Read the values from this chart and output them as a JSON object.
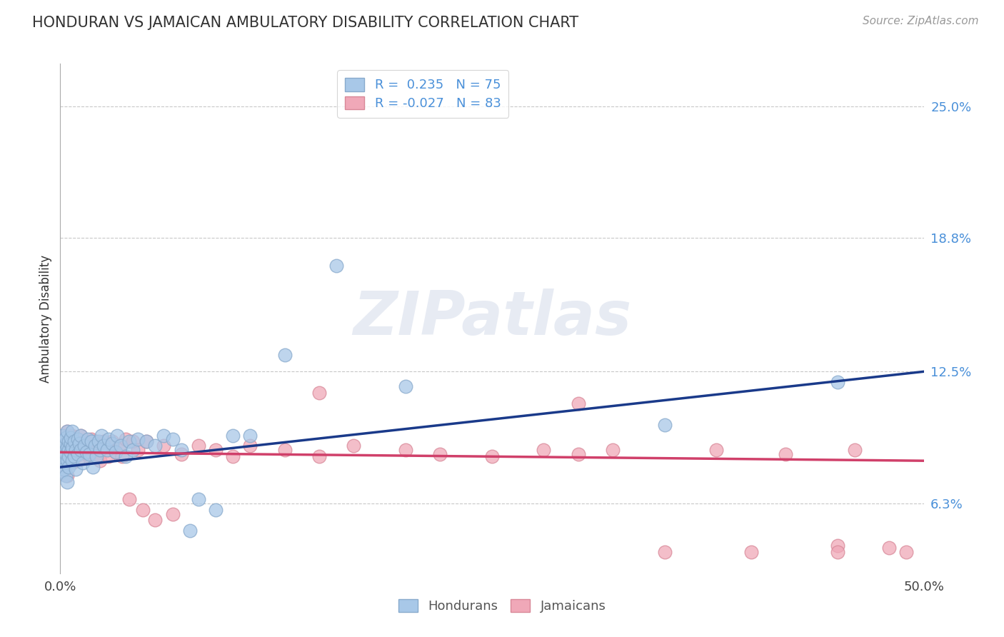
{
  "title": "HONDURAN VS JAMAICAN AMBULATORY DISABILITY CORRELATION CHART",
  "source_text": "Source: ZipAtlas.com",
  "ylabel": "Ambulatory Disability",
  "xlim": [
    0.0,
    0.5
  ],
  "ylim": [
    0.03,
    0.27
  ],
  "ytick_positions": [
    0.063,
    0.125,
    0.188,
    0.25
  ],
  "ytick_labels": [
    "6.3%",
    "12.5%",
    "18.8%",
    "25.0%"
  ],
  "grid_color": "#c8c8c8",
  "background_color": "#ffffff",
  "blue_color": "#a8c8e8",
  "pink_color": "#f0a8b8",
  "blue_edge_color": "#88aacc",
  "pink_edge_color": "#d88898",
  "blue_line_color": "#1a3a8a",
  "pink_line_color": "#d0406a",
  "legend_line1": "R =  0.235   N = 75",
  "legend_line2": "R = -0.027   N = 83",
  "watermark": "ZIPatlas",
  "blue_line_x0": 0.0,
  "blue_line_y0": 0.08,
  "blue_line_x1": 0.5,
  "blue_line_y1": 0.125,
  "pink_line_x0": 0.0,
  "pink_line_y0": 0.087,
  "pink_line_x1": 0.5,
  "pink_line_y1": 0.083,
  "hondurans_x": [
    0.001,
    0.001,
    0.001,
    0.001,
    0.001,
    0.002,
    0.002,
    0.002,
    0.002,
    0.002,
    0.003,
    0.003,
    0.003,
    0.003,
    0.004,
    0.004,
    0.004,
    0.004,
    0.005,
    0.005,
    0.005,
    0.005,
    0.006,
    0.006,
    0.006,
    0.007,
    0.007,
    0.007,
    0.008,
    0.008,
    0.009,
    0.009,
    0.01,
    0.01,
    0.011,
    0.012,
    0.012,
    0.013,
    0.014,
    0.015,
    0.016,
    0.017,
    0.018,
    0.019,
    0.02,
    0.021,
    0.022,
    0.023,
    0.024,
    0.025,
    0.027,
    0.028,
    0.03,
    0.032,
    0.033,
    0.035,
    0.038,
    0.04,
    0.042,
    0.045,
    0.05,
    0.055,
    0.06,
    0.065,
    0.07,
    0.075,
    0.08,
    0.09,
    0.1,
    0.11,
    0.13,
    0.16,
    0.2,
    0.35,
    0.45
  ],
  "hondurans_y": [
    0.087,
    0.092,
    0.083,
    0.078,
    0.095,
    0.085,
    0.09,
    0.082,
    0.088,
    0.079,
    0.091,
    0.086,
    0.094,
    0.076,
    0.089,
    0.083,
    0.097,
    0.073,
    0.088,
    0.092,
    0.08,
    0.085,
    0.091,
    0.087,
    0.094,
    0.083,
    0.089,
    0.097,
    0.085,
    0.092,
    0.088,
    0.079,
    0.093,
    0.086,
    0.091,
    0.088,
    0.095,
    0.082,
    0.09,
    0.087,
    0.093,
    0.086,
    0.092,
    0.08,
    0.09,
    0.085,
    0.092,
    0.088,
    0.095,
    0.09,
    0.088,
    0.093,
    0.091,
    0.087,
    0.095,
    0.09,
    0.085,
    0.092,
    0.088,
    0.093,
    0.092,
    0.09,
    0.095,
    0.093,
    0.088,
    0.05,
    0.065,
    0.06,
    0.095,
    0.095,
    0.133,
    0.175,
    0.118,
    0.1,
    0.12
  ],
  "jamaicans_x": [
    0.001,
    0.001,
    0.001,
    0.002,
    0.002,
    0.002,
    0.002,
    0.003,
    0.003,
    0.003,
    0.004,
    0.004,
    0.004,
    0.004,
    0.005,
    0.005,
    0.005,
    0.006,
    0.006,
    0.006,
    0.007,
    0.007,
    0.007,
    0.008,
    0.008,
    0.009,
    0.009,
    0.01,
    0.01,
    0.011,
    0.012,
    0.013,
    0.014,
    0.015,
    0.016,
    0.017,
    0.018,
    0.019,
    0.02,
    0.021,
    0.022,
    0.023,
    0.025,
    0.027,
    0.028,
    0.03,
    0.032,
    0.034,
    0.036,
    0.038,
    0.04,
    0.042,
    0.045,
    0.048,
    0.05,
    0.055,
    0.06,
    0.065,
    0.07,
    0.08,
    0.09,
    0.1,
    0.11,
    0.13,
    0.15,
    0.17,
    0.2,
    0.22,
    0.25,
    0.28,
    0.3,
    0.32,
    0.35,
    0.38,
    0.4,
    0.42,
    0.45,
    0.46,
    0.48,
    0.49,
    0.15,
    0.3,
    0.45
  ],
  "jamaicans_y": [
    0.09,
    0.085,
    0.093,
    0.082,
    0.088,
    0.095,
    0.079,
    0.091,
    0.086,
    0.094,
    0.083,
    0.09,
    0.097,
    0.076,
    0.088,
    0.092,
    0.083,
    0.089,
    0.085,
    0.093,
    0.088,
    0.082,
    0.095,
    0.087,
    0.091,
    0.085,
    0.092,
    0.088,
    0.083,
    0.091,
    0.095,
    0.088,
    0.092,
    0.086,
    0.09,
    0.085,
    0.093,
    0.088,
    0.092,
    0.086,
    0.09,
    0.083,
    0.092,
    0.088,
    0.085,
    0.092,
    0.087,
    0.09,
    0.085,
    0.093,
    0.065,
    0.092,
    0.088,
    0.06,
    0.092,
    0.055,
    0.09,
    0.058,
    0.086,
    0.09,
    0.088,
    0.085,
    0.09,
    0.088,
    0.085,
    0.09,
    0.088,
    0.086,
    0.085,
    0.088,
    0.086,
    0.088,
    0.04,
    0.088,
    0.04,
    0.086,
    0.043,
    0.088,
    0.042,
    0.04,
    0.115,
    0.11,
    0.04
  ]
}
